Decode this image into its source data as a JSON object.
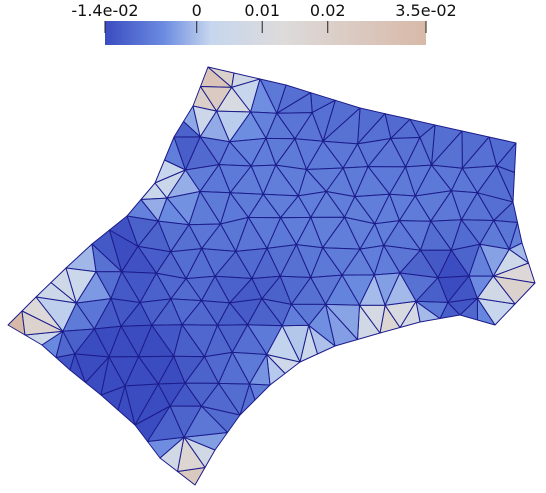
{
  "colorbar": {
    "ticks": [
      {
        "label": "-1.4e-02",
        "value": -0.014
      },
      {
        "label": "0",
        "value": 0
      },
      {
        "label": "0.01",
        "value": 0.01
      },
      {
        "label": "0.02",
        "value": 0.02
      },
      {
        "label": "3.5e-02",
        "value": 0.035
      }
    ],
    "range": [
      -0.014,
      0.035
    ],
    "colors": {
      "low": "#3b4cc0",
      "mid": "#dddddd",
      "high": "#d8b9a8"
    }
  },
  "mesh": {
    "edge_color": "#1c1c8c"
  }
}
